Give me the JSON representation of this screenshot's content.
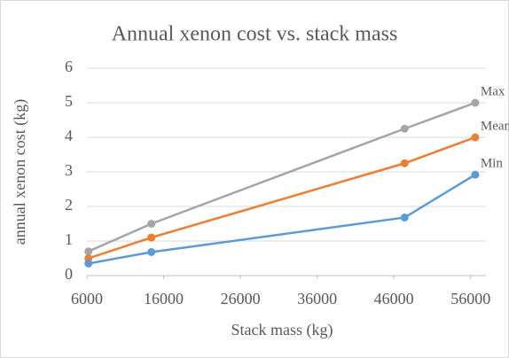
{
  "chart_data": {
    "type": "line",
    "title": "Annual xenon cost vs. stack mass",
    "x_label": "Stack mass (kg)",
    "y_label": "annual xenon cost (kg)",
    "x": [
      6200,
      14400,
      47400,
      56600
    ],
    "series": [
      {
        "name": "Max",
        "color": "#a5a5a5",
        "values": [
          0.7,
          1.5,
          4.25,
          5.0
        ]
      },
      {
        "name": "Mean",
        "color": "#ed7d31",
        "values": [
          0.5,
          1.1,
          3.25,
          4.0
        ]
      },
      {
        "name": "Min",
        "color": "#5b9bd5",
        "values": [
          0.35,
          0.68,
          1.68,
          2.92
        ]
      }
    ],
    "xlim": [
      6000,
      58000
    ],
    "xticks": [
      6000,
      16000,
      26000,
      36000,
      46000,
      56000
    ],
    "ylim": [
      0,
      6
    ],
    "yticks": [
      0,
      1,
      2,
      3,
      4,
      5,
      6
    ],
    "grid": true
  }
}
